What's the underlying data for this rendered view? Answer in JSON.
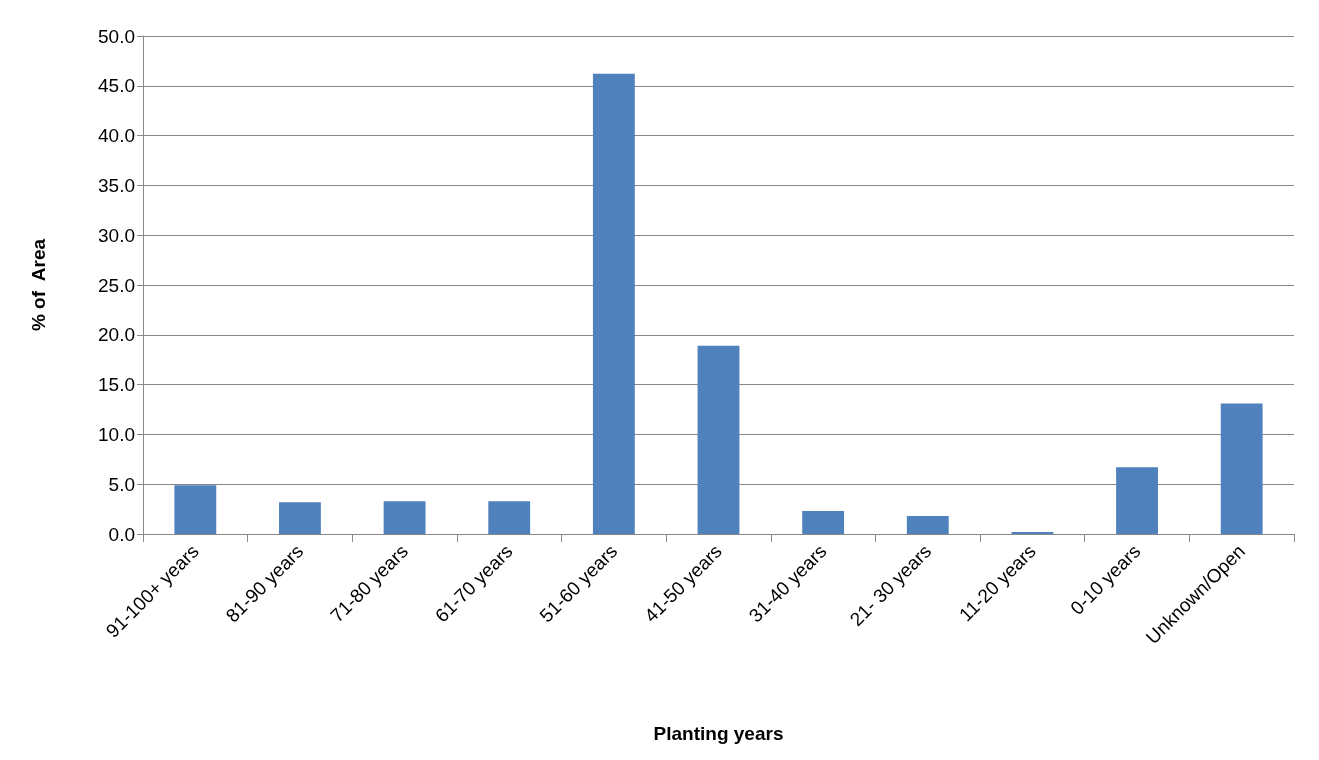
{
  "chart_data": {
    "type": "bar",
    "xlabel": "Planting years",
    "ylabel": "% of  Area",
    "categories": [
      "91-100+ years",
      "81-90 years",
      "71-80 years",
      "61-70 years",
      "51-60 years",
      "41-50 years",
      "31-40 years",
      "21- 30 years",
      "11-20 years",
      "0-10 years",
      "Unknown/Open"
    ],
    "values": [
      4.9,
      3.2,
      3.3,
      3.3,
      46.2,
      18.9,
      2.3,
      1.8,
      0.2,
      6.7,
      13.1
    ],
    "color": "#4f81bd",
    "ylim": [
      0,
      50
    ],
    "yticks": [
      {
        "value": 0,
        "label": "0.0"
      },
      {
        "value": 5,
        "label": "5.0"
      },
      {
        "value": 10,
        "label": "10.0"
      },
      {
        "value": 15,
        "label": "15.0"
      },
      {
        "value": 20,
        "label": "20.0"
      },
      {
        "value": 25,
        "label": "25.0"
      },
      {
        "value": 30,
        "label": "30.0"
      },
      {
        "value": 35,
        "label": "35.0"
      },
      {
        "value": 40,
        "label": "40.0"
      },
      {
        "value": 45,
        "label": "45.0"
      },
      {
        "value": 50,
        "label": "50.0"
      }
    ],
    "grid": "y"
  }
}
